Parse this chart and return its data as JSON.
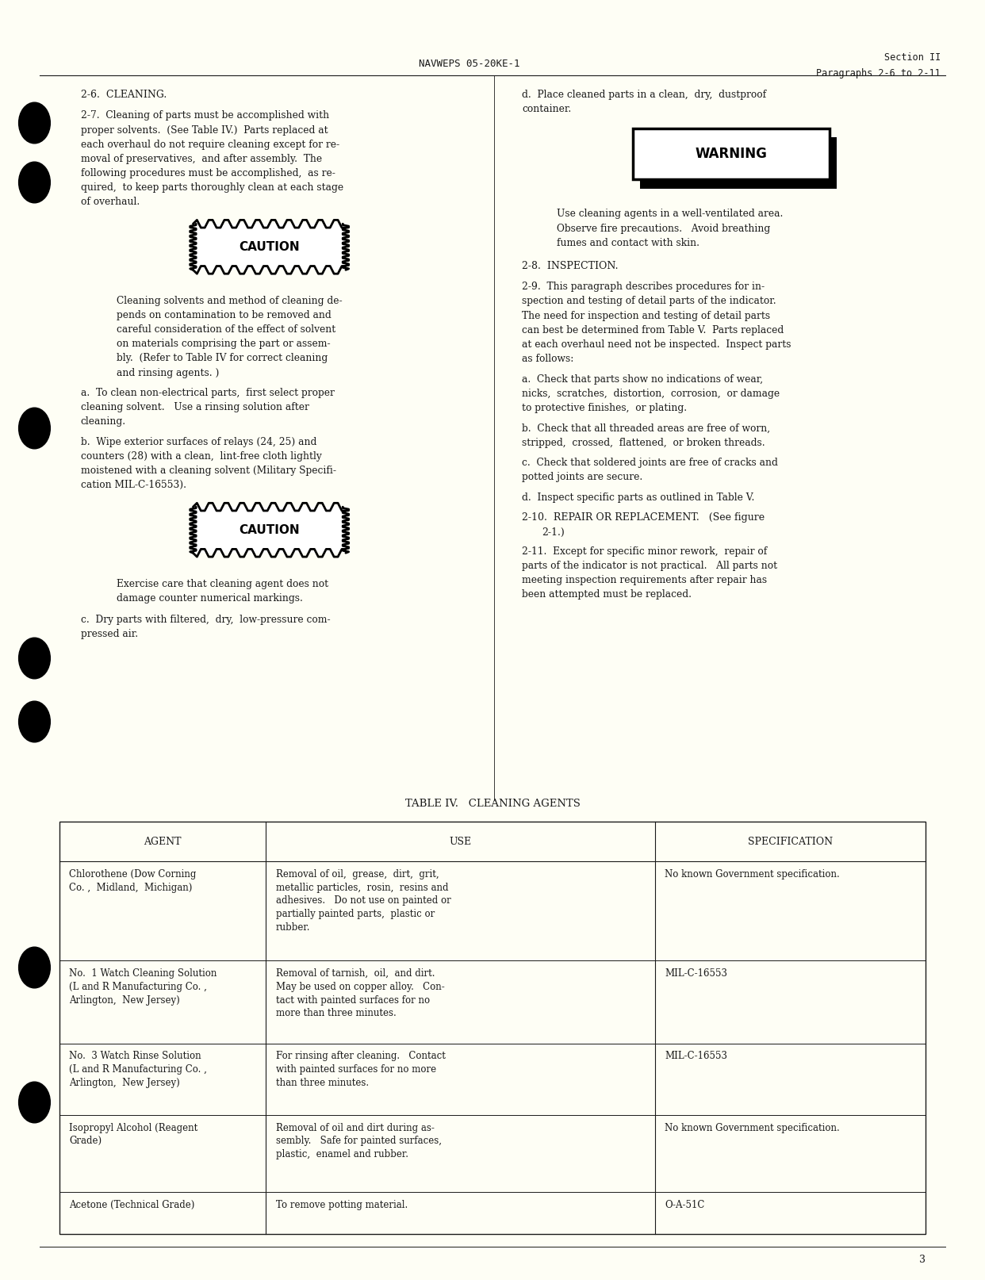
{
  "bg_color": "#FEFEF5",
  "text_color": "#1a1a1a",
  "header_left": "NAVWEPS 05-20KE-1",
  "header_right_line1": "Section II",
  "header_right_line2": "Paragraphs 2-6 to 2-11",
  "page_number": "3",
  "font_size_body": 8.8,
  "font_size_heading": 9.0,
  "table_title": "TABLE IV.   CLEANING AGENTS",
  "table_headers": [
    "AGENT",
    "USE",
    "SPECIFICATION"
  ],
  "table_rows": [
    {
      "agent": "Chlorothene (Dow Corning\nCo. ,  Midland,  Michigan)",
      "use": "Removal of oil,  grease,  dirt,  grit,\nmetallic particles,  rosin,  resins and\nadhesives.   Do not use on painted or\npartially painted parts,  plastic or\nrubber.",
      "spec": "No known Government specification."
    },
    {
      "agent": "No.  1 Watch Cleaning Solution\n(L and R Manufacturing Co. ,\nArlington,  New Jersey)",
      "use": "Removal of tarnish,  oil,  and dirt.\nMay be used on copper alloy.   Con-\ntact with painted surfaces for no\nmore than three minutes.",
      "spec": "MIL-C-16553"
    },
    {
      "agent": "No.  3 Watch Rinse Solution\n(L and R Manufacturing Co. ,\nArlington,  New Jersey)",
      "use": "For rinsing after cleaning.   Contact\nwith painted surfaces for no more\nthan three minutes.",
      "spec": "MIL-C-16553"
    },
    {
      "agent": "Isopropyl Alcohol (Reagent\nGrade)",
      "use": "Removal of oil and dirt during as-\nsembly.   Safe for painted surfaces,\nplastic,  enamel and rubber.",
      "spec": "No known Government specification."
    },
    {
      "agent": "Acetone (Technical Grade)",
      "use": "To remove potting material.",
      "spec": "O-A-51C"
    }
  ]
}
